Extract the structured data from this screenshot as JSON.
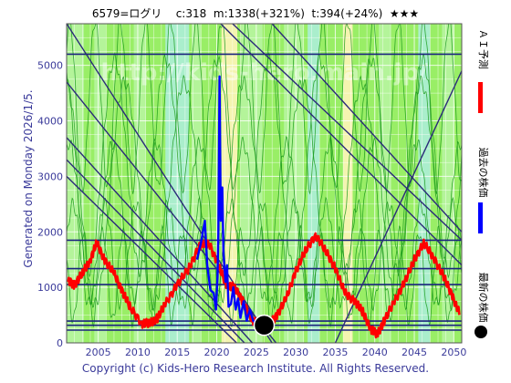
{
  "header": {
    "ticker": "6579=ログリ",
    "current": "c:318",
    "max_target": "m:1338(+321%)",
    "min_target": "t:394(+24%)",
    "rating": "★★★"
  },
  "side_text": "Generated on Monday 2026/1/5.",
  "footer": "Copyright (c) Kids-Hero Research Institute. All Rights Reserved.",
  "watermark": "http://kids-hero.main.jp/",
  "legend": [
    {
      "label": "ＡＩ予測",
      "color": "#ff0000"
    },
    {
      "label": "過去の株価",
      "color": "#0000ff"
    },
    {
      "label": "最新の株価",
      "color": "#000000"
    }
  ],
  "chart_data": {
    "type": "line",
    "xlim": [
      2001,
      2051
    ],
    "ylim": [
      0,
      5750
    ],
    "x_ticks": [
      2005,
      2010,
      2015,
      2020,
      2025,
      2030,
      2035,
      2040,
      2045,
      2050
    ],
    "y_ticks": [
      0,
      1000,
      2000,
      3000,
      4000,
      5000
    ],
    "grid": true,
    "series": [
      {
        "name": "ＡＩ予測",
        "color": "#ff0000",
        "points": [
          [
            2001.2,
            1100
          ],
          [
            2002,
            1050
          ],
          [
            2003,
            1250
          ],
          [
            2004,
            1500
          ],
          [
            2004.8,
            1800
          ],
          [
            2005.8,
            1500
          ],
          [
            2007,
            1250
          ],
          [
            2008,
            950
          ],
          [
            2009,
            650
          ],
          [
            2010.5,
            350
          ],
          [
            2011.5,
            350
          ],
          [
            2012.5,
            450
          ],
          [
            2013.5,
            700
          ],
          [
            2015,
            1050
          ],
          [
            2016.5,
            1350
          ],
          [
            2017.8,
            1750
          ],
          [
            2019,
            1800
          ],
          [
            2020.2,
            1400
          ],
          [
            2021.2,
            1050
          ],
          [
            2022.2,
            1000
          ],
          [
            2023.3,
            750
          ],
          [
            2024.5,
            400
          ],
          [
            2025.6,
            300
          ],
          [
            2026.6,
            320
          ],
          [
            2027.6,
            500
          ],
          [
            2028.8,
            800
          ],
          [
            2030,
            1300
          ],
          [
            2031.2,
            1650
          ],
          [
            2032.5,
            1950
          ],
          [
            2033.8,
            1650
          ],
          [
            2035,
            1350
          ],
          [
            2036.2,
            900
          ],
          [
            2037.5,
            750
          ],
          [
            2038.5,
            550
          ],
          [
            2039.5,
            250
          ],
          [
            2040.3,
            150
          ],
          [
            2041.2,
            400
          ],
          [
            2042.5,
            750
          ],
          [
            2043.8,
            1100
          ],
          [
            2045,
            1500
          ],
          [
            2046.2,
            1800
          ],
          [
            2047.4,
            1550
          ],
          [
            2048.7,
            1200
          ],
          [
            2049.8,
            850
          ],
          [
            2050.8,
            500
          ]
        ]
      },
      {
        "name": "過去の株価",
        "color": "#0000ff",
        "points": [
          [
            2017.5,
            1500
          ],
          [
            2018,
            1800
          ],
          [
            2018.5,
            2200
          ],
          [
            2018.8,
            1400
          ],
          [
            2019.2,
            950
          ],
          [
            2019.6,
            900
          ],
          [
            2019.9,
            600
          ],
          [
            2020.1,
            1200
          ],
          [
            2020.2,
            2000
          ],
          [
            2020.35,
            4800
          ],
          [
            2020.5,
            2200
          ],
          [
            2020.7,
            2800
          ],
          [
            2020.85,
            1600
          ],
          [
            2021.1,
            1100
          ],
          [
            2021.3,
            1400
          ],
          [
            2021.5,
            650
          ],
          [
            2021.8,
            700
          ],
          [
            2022.1,
            1000
          ],
          [
            2022.4,
            600
          ],
          [
            2022.7,
            800
          ],
          [
            2023,
            450
          ],
          [
            2023.4,
            750
          ],
          [
            2023.8,
            400
          ],
          [
            2024.2,
            600
          ],
          [
            2024.6,
            400
          ],
          [
            2025,
            350
          ],
          [
            2025.5,
            320
          ]
        ]
      }
    ],
    "latest_point": {
      "name": "最新の株価",
      "x": 2026,
      "y": 318,
      "color": "#000000"
    },
    "horizontal_levels": [
      {
        "y": 5200,
        "color": "#1a237e"
      },
      {
        "y": 1850,
        "color": "#1a237e"
      },
      {
        "y": 1338,
        "color": "#1a237e"
      },
      {
        "y": 1050,
        "color": "#1a237e"
      },
      {
        "y": 394,
        "color": "#1a237e"
      },
      {
        "y": 318,
        "color": "#1a237e"
      },
      {
        "y": 230,
        "color": "#1a237e"
      }
    ],
    "trend_lines": [
      {
        "x1": 2001,
        "y1": 5750,
        "x2": 2027,
        "y2": 0,
        "color": "#2a2a7a"
      },
      {
        "x1": 2001,
        "y1": 4700,
        "x2": 2027.5,
        "y2": 0,
        "color": "#2a2a7a"
      },
      {
        "x1": 2001,
        "y1": 3700,
        "x2": 2024.5,
        "y2": 0,
        "color": "#2a2a7a"
      },
      {
        "x1": 2001,
        "y1": 3300,
        "x2": 2023.5,
        "y2": 0,
        "color": "#2a2a7a"
      },
      {
        "x1": 2001,
        "y1": 3000,
        "x2": 2022.5,
        "y2": 0,
        "color": "#2a2a7a"
      },
      {
        "x1": 2020.5,
        "y1": 5750,
        "x2": 2051,
        "y2": 1400,
        "color": "#2a2a7a"
      },
      {
        "x1": 2022,
        "y1": 5750,
        "x2": 2051,
        "y2": 1850,
        "color": "#2a2a7a"
      },
      {
        "x1": 2027,
        "y1": 5750,
        "x2": 2051,
        "y2": 2000,
        "color": "#2a2a7a"
      },
      {
        "x1": 2035,
        "y1": 0,
        "x2": 2051,
        "y2": 4900,
        "color": "#2a2a7a"
      }
    ],
    "colors": {
      "background": "#99ee66",
      "band_light_green": "#b4f49a",
      "band_cyan": "#aaeecc",
      "band_yellow": "#f4f4b0",
      "green_lines": "#1a9a1a",
      "grid": "#ffffff",
      "axis_text": "#3a3a9a"
    }
  }
}
